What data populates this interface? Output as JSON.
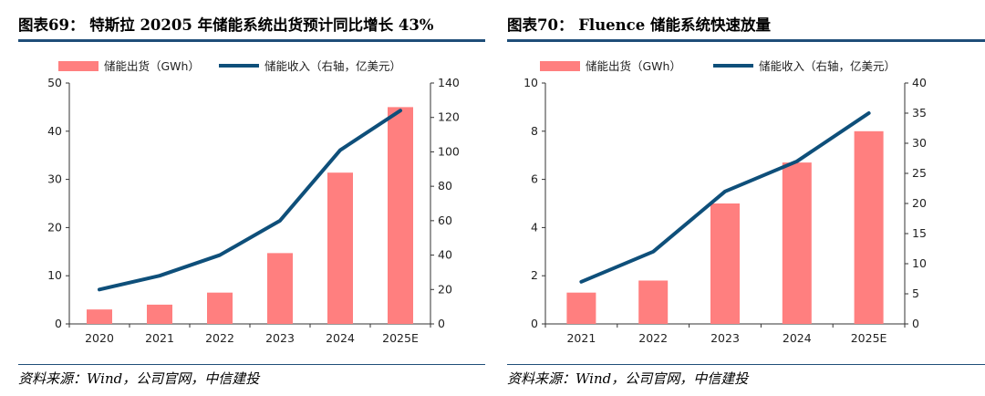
{
  "charts": [
    {
      "title": "图表69：   特斯拉 20205 年储能系统出货预计同比增长 43%",
      "source": "资料来源：Wind，公司官网，中信建投"
    },
    {
      "title": "图表70：   Fluence 储能系统快速放量",
      "source": "资料来源：Wind，公司官网，中信建投"
    }
  ],
  "chart_data": [
    {
      "type": "bar",
      "title": "特斯拉 20205 年储能系统出货预计同比增长 43%",
      "categories": [
        "2020",
        "2021",
        "2022",
        "2023",
        "2024",
        "2025E"
      ],
      "series": [
        {
          "name": "储能出货（GWh）",
          "kind": "bar",
          "axis": "left",
          "color": "#ff7f7f",
          "values": [
            3.0,
            4.0,
            6.5,
            14.7,
            31.4,
            45.0
          ]
        },
        {
          "name": "储能收入（右轴，亿美元）",
          "kind": "line",
          "axis": "right",
          "color": "#0e4f7a",
          "values": [
            20,
            28,
            40,
            60,
            101,
            124
          ]
        }
      ],
      "ylim_left": [
        0,
        50
      ],
      "yticks_left": [
        0,
        10,
        20,
        30,
        40,
        50
      ],
      "ylim_right": [
        0,
        140
      ],
      "yticks_right": [
        0,
        20,
        40,
        60,
        80,
        100,
        120,
        140
      ],
      "xlabel": "",
      "ylabel": "",
      "legend": "top"
    },
    {
      "type": "bar",
      "title": "Fluence 储能系统快速放量",
      "categories": [
        "2021",
        "2022",
        "2023",
        "2024",
        "2025E"
      ],
      "series": [
        {
          "name": "储能出货（GWh）",
          "kind": "bar",
          "axis": "left",
          "color": "#ff7f7f",
          "values": [
            1.3,
            1.8,
            5.0,
            6.7,
            8.0
          ]
        },
        {
          "name": "储能收入（右轴，亿美元）",
          "kind": "line",
          "axis": "right",
          "color": "#0e4f7a",
          "values": [
            7,
            12,
            22,
            27,
            35
          ]
        }
      ],
      "ylim_left": [
        0,
        10
      ],
      "yticks_left": [
        0,
        2,
        4,
        6,
        8,
        10
      ],
      "ylim_right": [
        0,
        40
      ],
      "yticks_right": [
        0,
        5,
        10,
        15,
        20,
        25,
        30,
        35,
        40
      ],
      "xlabel": "",
      "ylabel": "",
      "legend": "top"
    }
  ]
}
